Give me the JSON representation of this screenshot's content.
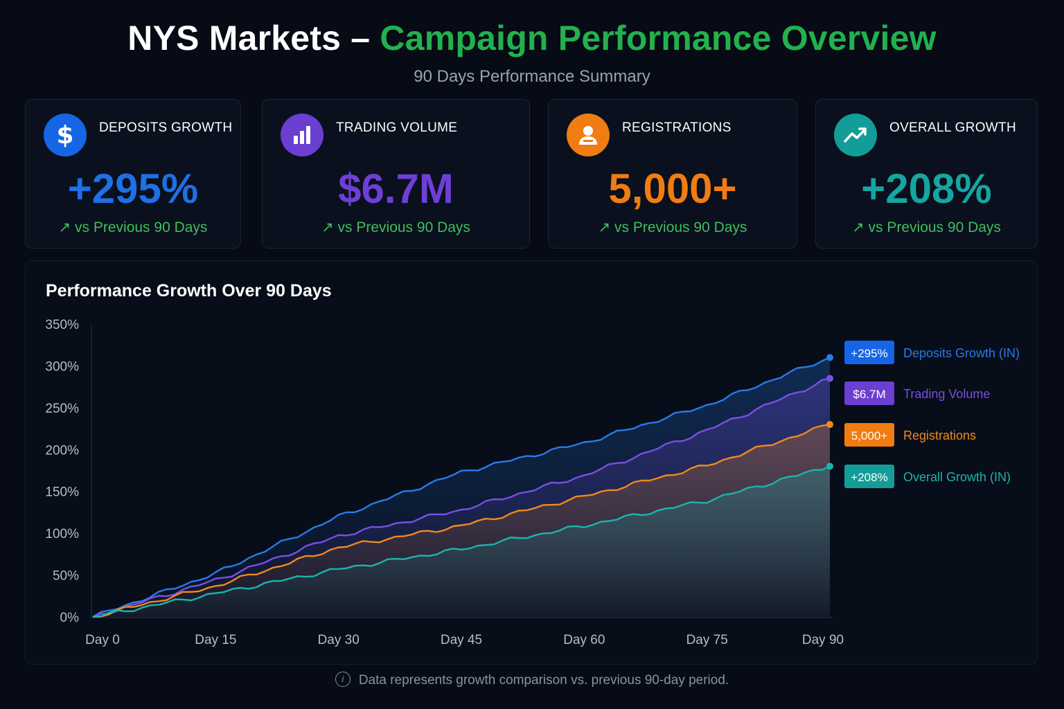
{
  "header": {
    "title_prefix": "NYS Markets –",
    "title_highlight": "Campaign Performance Overview",
    "subtitle": "90 Days Performance Summary"
  },
  "cards": [
    {
      "label": "DEPOSITS GROWTH",
      "value": "+295%",
      "delta": "vs Previous 90 Days",
      "icon": "dollar-icon",
      "color": "#1f6fe5"
    },
    {
      "label": "TRADING VOLUME",
      "value": "$6.7M",
      "delta": "vs Previous 90 Days",
      "icon": "bar-chart-icon",
      "color": "#6d3fd6"
    },
    {
      "label": "REGISTRATIONS",
      "value": "5,000+",
      "delta": "vs Previous 90 Days",
      "icon": "user-icon",
      "color": "#f07c12"
    },
    {
      "label": "OVERALL GROWTH",
      "value": "+208%",
      "delta": "vs Previous 90 Days",
      "icon": "trend-up-icon",
      "color": "#17a5a0"
    }
  ],
  "delta_arrow": "↗",
  "footer": {
    "icon": "info-icon",
    "text": "Data represents growth comparison vs. previous 90-day period."
  },
  "chart_data": {
    "type": "area",
    "title": "Performance Growth Over 90 Days",
    "x": [
      0,
      15,
      30,
      45,
      60,
      75,
      90
    ],
    "x_tick_labels": [
      "Day 0",
      "Day 15",
      "Day 30",
      "Day 45",
      "Day 60",
      "Day 75",
      "Day 90"
    ],
    "y_tick_labels": [
      "0%",
      "50%",
      "100%",
      "150%",
      "200%",
      "250%",
      "300%",
      "350%"
    ],
    "ylim": [
      0,
      350
    ],
    "xlim": [
      0,
      90
    ],
    "grid": false,
    "legend_position": "right",
    "series": [
      {
        "name": "Deposits Growth (IN)",
        "badge": "+295%",
        "color": "#2a7be8",
        "badge_color": "#1565e6",
        "values": [
          0,
          52,
          120,
          173,
          208,
          253,
          310
        ]
      },
      {
        "name": "Trading Volume",
        "badge": "$6.7M",
        "color": "#7b4ee6",
        "badge_color": "#6a3fd2",
        "values": [
          0,
          44,
          97,
          128,
          169,
          223,
          285
        ]
      },
      {
        "name": "Registrations",
        "badge": "5,000+",
        "color": "#f08a1c",
        "badge_color": "#f07c12",
        "values": [
          0,
          37,
          83,
          109,
          144,
          181,
          230
        ]
      },
      {
        "name": "Overall Growth (IN)",
        "badge": "+208%",
        "color": "#1cb5ad",
        "badge_color": "#139d98",
        "values": [
          0,
          28,
          57,
          81,
          109,
          139,
          180
        ]
      }
    ]
  }
}
